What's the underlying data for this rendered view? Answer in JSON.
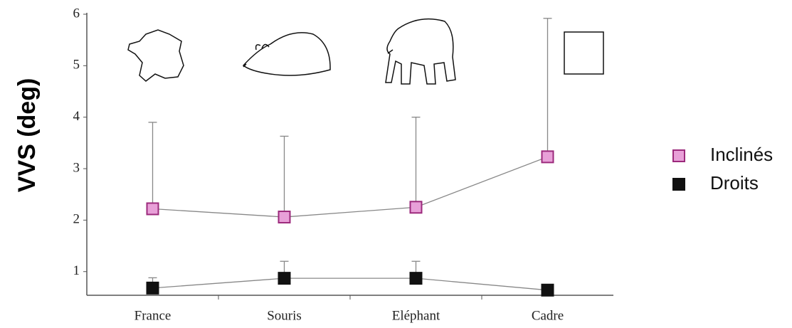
{
  "chart_data": {
    "type": "line",
    "y_label": "VVS (deg)",
    "categories": [
      "France",
      "Souris",
      "Eléphant",
      "Cadre"
    ],
    "series": [
      {
        "name": "Inclinés",
        "color": "#e8a0d8",
        "edge": "#9c2a7c",
        "values": [
          2.22,
          2.06,
          2.25,
          3.23
        ],
        "errors": [
          1.68,
          1.57,
          1.75,
          2.69
        ]
      },
      {
        "name": "Droits",
        "color": "#111111",
        "edge": "#111111",
        "values": [
          0.68,
          0.87,
          0.87,
          0.64
        ],
        "errors": [
          0.2,
          0.33,
          0.33,
          null
        ]
      }
    ],
    "ylim": [
      0.54,
      6
    ],
    "yticks": [
      1,
      2,
      3,
      4,
      5,
      6
    ],
    "legend": "right"
  }
}
